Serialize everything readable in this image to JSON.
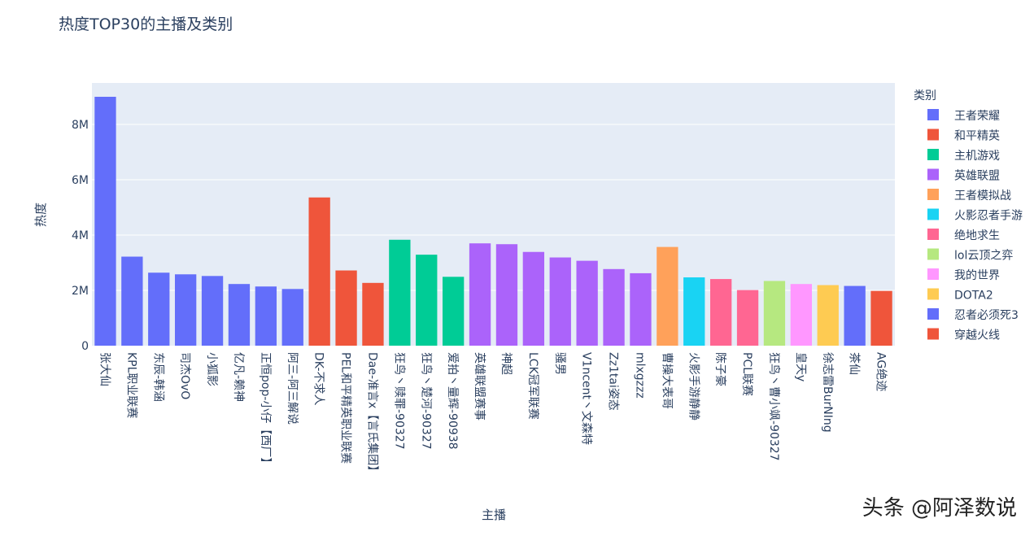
{
  "chart_data": {
    "type": "bar",
    "title": "热度TOP30的主播及类别",
    "xlabel": "主播",
    "ylabel": "热度",
    "ylim": [
      0,
      9500000
    ],
    "yticks": [
      {
        "value": 0,
        "label": "0"
      },
      {
        "value": 2000000,
        "label": "2M"
      },
      {
        "value": 4000000,
        "label": "4M"
      },
      {
        "value": 6000000,
        "label": "6M"
      },
      {
        "value": 8000000,
        "label": "8M"
      }
    ],
    "grid": true,
    "legend": {
      "title": "类别",
      "placement": "right",
      "entries": [
        {
          "name": "王者荣耀",
          "color": "#636efa"
        },
        {
          "name": "和平精英",
          "color": "#ef553b"
        },
        {
          "name": "主机游戏",
          "color": "#00cc96"
        },
        {
          "name": "英雄联盟",
          "color": "#ab63fa"
        },
        {
          "name": "王者模拟战",
          "color": "#ffa15a"
        },
        {
          "name": "火影忍者手游",
          "color": "#19d3f3"
        },
        {
          "name": "绝地求生",
          "color": "#ff6692"
        },
        {
          "name": "lol云顶之弈",
          "color": "#b6e880"
        },
        {
          "name": "我的世界",
          "color": "#ff97ff"
        },
        {
          "name": "DOTA2",
          "color": "#fecb52"
        },
        {
          "name": "忍者必须死3",
          "color": "#636efa"
        },
        {
          "name": "穿越火线",
          "color": "#ef553b"
        }
      ]
    },
    "categories": [
      "张大仙",
      "KPL职业联赛",
      "东辰-韩涵",
      "司杰OvO",
      "小狐影",
      "亿凡-赖神",
      "正恒pop-小仔【西厂】",
      "阿三-阿三解说",
      "DK-不求人",
      "PEL和平精英职业联赛",
      "Dae-准言x【言氏集团】",
      "狂鸟丶赎罪-90327",
      "狂鸟丶楚河-90327",
      "爱拍丶量辉-90938",
      "英雄联盟赛事",
      "神超",
      "LCK冠军联赛",
      "骚男",
      "V1ncent丶文森特",
      "Zz1tai姿态",
      "mlxgzzz",
      "曹操大表哥",
      "火影手游静静",
      "陈子豪",
      "PCL联赛",
      "狂鸟丶曹小飒-90327",
      "皇天y",
      "徐志雷BurNIng",
      "茶仙",
      "AG绝迹"
    ],
    "values": [
      9000000,
      3220000,
      2640000,
      2580000,
      2520000,
      2230000,
      2140000,
      2050000,
      5360000,
      2720000,
      2270000,
      3830000,
      3290000,
      2490000,
      3700000,
      3670000,
      3390000,
      3190000,
      3070000,
      2770000,
      2620000,
      3570000,
      2470000,
      2410000,
      2010000,
      2340000,
      2230000,
      2190000,
      2160000,
      1980000
    ],
    "series_of": [
      "王者荣耀",
      "王者荣耀",
      "王者荣耀",
      "王者荣耀",
      "王者荣耀",
      "王者荣耀",
      "王者荣耀",
      "王者荣耀",
      "和平精英",
      "和平精英",
      "和平精英",
      "主机游戏",
      "主机游戏",
      "主机游戏",
      "英雄联盟",
      "英雄联盟",
      "英雄联盟",
      "英雄联盟",
      "英雄联盟",
      "英雄联盟",
      "英雄联盟",
      "王者模拟战",
      "火影忍者手游",
      "绝地求生",
      "绝地求生",
      "lol云顶之弈",
      "我的世界",
      "DOTA2",
      "忍者必须死3",
      "穿越火线"
    ]
  },
  "watermark": "头条 @阿泽数说"
}
